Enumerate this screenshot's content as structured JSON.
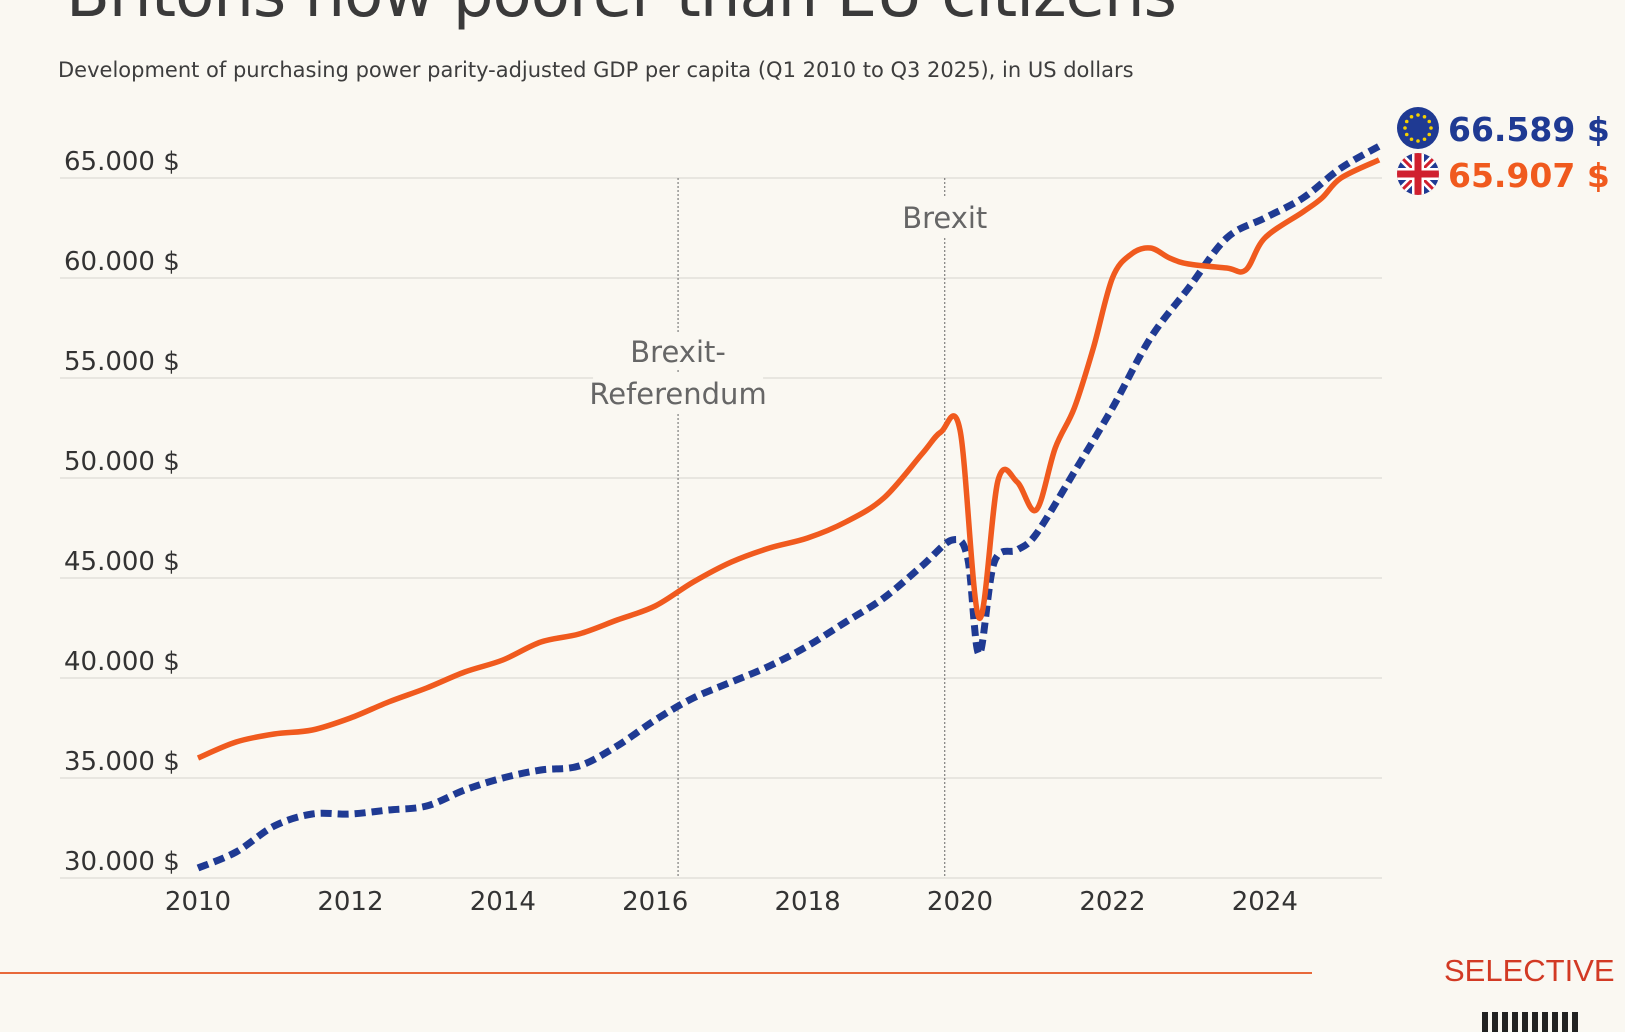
{
  "header": {
    "title": "Britons now poorer than EU citizens",
    "subtitle": "Development of purchasing power parity-adjusted GDP per capita (Q1 2010 to Q3 2025), in US dollars"
  },
  "brand": "SELECTIVE",
  "chart_data": {
    "type": "line",
    "title": "Britons now poorer than EU citizens",
    "subtitle": "Development of purchasing power parity-adjusted GDP per capita (Q1 2010 to Q3 2025), in US dollars",
    "xlim": [
      2010,
      2025.6
    ],
    "ylim": [
      30000,
      65000
    ],
    "grid": true,
    "x_ticks": [
      2010,
      2012,
      2014,
      2016,
      2018,
      2020,
      2022,
      2024
    ],
    "x_tick_labels": [
      "2010",
      "2012",
      "2014",
      "2016",
      "2018",
      "2020",
      "2022",
      "2024"
    ],
    "y_ticks": [
      30000,
      35000,
      40000,
      45000,
      50000,
      55000,
      60000,
      65000
    ],
    "y_tick_labels": [
      "30.000 $",
      "35.000 $",
      "40.000 $",
      "45.000 $",
      "50.000 $",
      "55.000 $",
      "60.000 $",
      "65.000 $"
    ],
    "annotations": [
      {
        "x": 2016.3,
        "label": [
          "Brexit-",
          "Referendum"
        ]
      },
      {
        "x": 2019.8,
        "label": [
          "Brexit"
        ]
      }
    ],
    "series": [
      {
        "key": "eu",
        "color": "#1f3a93",
        "style": "dashed",
        "icon": "eu-flag-icon",
        "end_label": "66.589 $",
        "points": [
          [
            2010,
            30500
          ],
          [
            2010.5,
            31300
          ],
          [
            2011,
            32600
          ],
          [
            2011.5,
            33200
          ],
          [
            2012,
            33200
          ],
          [
            2012.5,
            33400
          ],
          [
            2013,
            33600
          ],
          [
            2013.5,
            34400
          ],
          [
            2014,
            35000
          ],
          [
            2014.5,
            35400
          ],
          [
            2015,
            35600
          ],
          [
            2015.5,
            36600
          ],
          [
            2016,
            37900
          ],
          [
            2016.5,
            39000
          ],
          [
            2017,
            39800
          ],
          [
            2017.5,
            40600
          ],
          [
            2018,
            41600
          ],
          [
            2018.5,
            42800
          ],
          [
            2019,
            44000
          ],
          [
            2019.5,
            45600
          ],
          [
            2019.9,
            46900
          ],
          [
            2020.1,
            46000
          ],
          [
            2020.25,
            41200
          ],
          [
            2020.45,
            45800
          ],
          [
            2020.75,
            46400
          ],
          [
            2021,
            47200
          ],
          [
            2021.5,
            50300
          ],
          [
            2022,
            53500
          ],
          [
            2022.5,
            57000
          ],
          [
            2023,
            59500
          ],
          [
            2023.5,
            62000
          ],
          [
            2024,
            63000
          ],
          [
            2024.5,
            64000
          ],
          [
            2025,
            65500
          ],
          [
            2025.5,
            66589
          ]
        ]
      },
      {
        "key": "uk",
        "color": "#f05a1e",
        "style": "solid",
        "icon": "uk-flag-icon",
        "end_label": "65.907 $",
        "points": [
          [
            2010,
            36000
          ],
          [
            2010.5,
            36800
          ],
          [
            2011,
            37200
          ],
          [
            2011.5,
            37400
          ],
          [
            2012,
            38000
          ],
          [
            2012.5,
            38800
          ],
          [
            2013,
            39500
          ],
          [
            2013.5,
            40300
          ],
          [
            2014,
            40900
          ],
          [
            2014.5,
            41800
          ],
          [
            2015,
            42200
          ],
          [
            2015.5,
            42900
          ],
          [
            2016,
            43600
          ],
          [
            2016.5,
            44800
          ],
          [
            2017,
            45800
          ],
          [
            2017.5,
            46500
          ],
          [
            2018,
            47000
          ],
          [
            2018.5,
            47800
          ],
          [
            2019,
            49000
          ],
          [
            2019.5,
            51200
          ],
          [
            2019.75,
            52300
          ],
          [
            2020,
            52400
          ],
          [
            2020.25,
            43000
          ],
          [
            2020.5,
            49900
          ],
          [
            2020.75,
            49800
          ],
          [
            2021,
            48400
          ],
          [
            2021.25,
            51500
          ],
          [
            2021.5,
            53500
          ],
          [
            2021.75,
            56500
          ],
          [
            2022,
            60000
          ],
          [
            2022.25,
            61200
          ],
          [
            2022.5,
            61500
          ],
          [
            2022.75,
            61000
          ],
          [
            2023,
            60700
          ],
          [
            2023.5,
            60500
          ],
          [
            2023.75,
            60400
          ],
          [
            2024,
            62000
          ],
          [
            2024.5,
            63300
          ],
          [
            2024.75,
            64000
          ],
          [
            2025,
            65000
          ],
          [
            2025.5,
            65907
          ]
        ]
      }
    ]
  }
}
